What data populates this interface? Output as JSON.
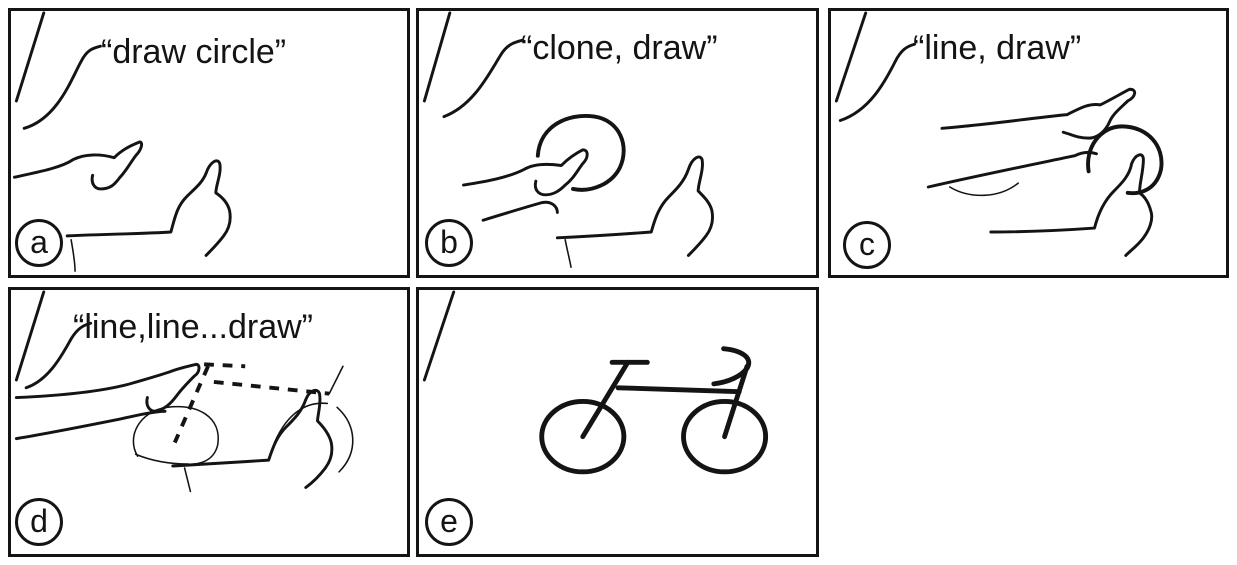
{
  "colors": {
    "ink": "#141414",
    "background": "#ffffff"
  },
  "panels": [
    {
      "label": "a",
      "caption": "“draw circle”"
    },
    {
      "label": "b",
      "caption": "“clone, draw”"
    },
    {
      "label": "c",
      "caption": "“line, draw”"
    },
    {
      "label": "d",
      "caption": "“line,line...draw”"
    },
    {
      "label": "e",
      "caption": ""
    }
  ]
}
